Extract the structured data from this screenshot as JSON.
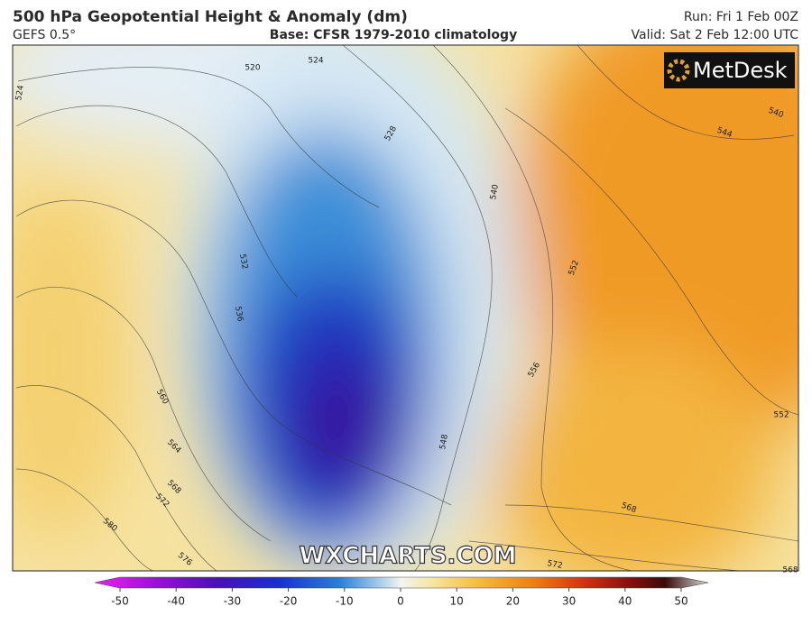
{
  "header": {
    "title": "500 hPa Geopotential Height & Anomaly (dm)",
    "model": "GEFS 0.5°",
    "base": "Base: CFSR 1979-2010 climatology",
    "run": "Run: Fri 1 Feb 00Z",
    "valid": "Valid: Sat 2 Feb 12:00 UTC"
  },
  "logo": "MetDesk",
  "watermark": "WXCHARTS.COM",
  "contour_labels": [
    520,
    524,
    524,
    528,
    532,
    536,
    540,
    540,
    544,
    548,
    552,
    552,
    556,
    560,
    564,
    568,
    568,
    568,
    572,
    572,
    576,
    580
  ],
  "colorbar": {
    "lim": [
      -50,
      50
    ],
    "ticks": [
      -50,
      -40,
      -30,
      -20,
      -10,
      0,
      10,
      20,
      30,
      40,
      50
    ]
  }
}
